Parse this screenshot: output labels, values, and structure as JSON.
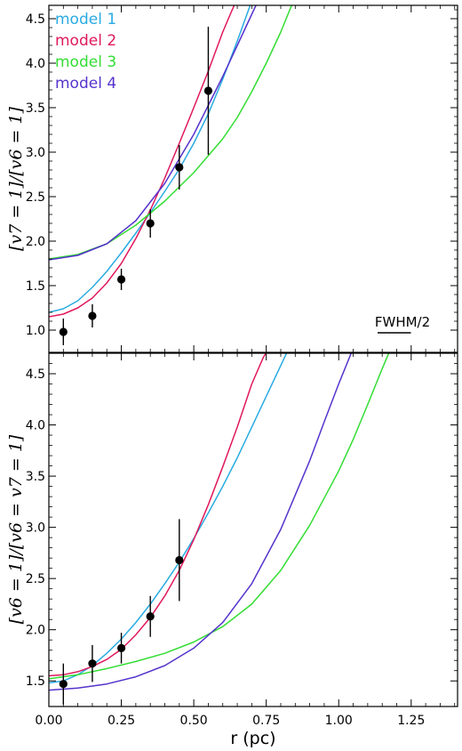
{
  "chart_data": [
    {
      "type": "scatter",
      "ylabel": "[v7 = 1]/[v6 = 1]",
      "ylim": [
        0.75,
        4.65
      ],
      "xlim": [
        0.0,
        1.41
      ],
      "yticks": [
        "1.0",
        "1.5",
        "2.0",
        "2.5",
        "3.0",
        "3.5",
        "4.0",
        "4.5"
      ],
      "legend": {
        "placement": "top-left",
        "entries": [
          "model 1",
          "model 2",
          "model 3",
          "model 4"
        ]
      },
      "annotation": "FWHM/2",
      "fwhm_half_pc": 0.115,
      "observed": {
        "x": [
          0.05,
          0.15,
          0.25,
          0.35,
          0.45,
          0.55
        ],
        "y": [
          0.98,
          1.16,
          1.57,
          2.2,
          2.83,
          3.69
        ],
        "err": [
          0.15,
          0.13,
          0.12,
          0.16,
          0.25,
          0.72
        ]
      },
      "series": [
        {
          "name": "model 1",
          "color": "#29abe2",
          "x": [
            0.0,
            0.05,
            0.1,
            0.15,
            0.2,
            0.25,
            0.3,
            0.35,
            0.4,
            0.45,
            0.5,
            0.55,
            0.6,
            0.65,
            0.7
          ],
          "y": [
            1.2,
            1.24,
            1.33,
            1.48,
            1.66,
            1.87,
            2.09,
            2.32,
            2.56,
            2.81,
            3.1,
            3.43,
            3.82,
            4.25,
            4.7
          ]
        },
        {
          "name": "model 2",
          "color": "#e0185c",
          "x": [
            0.0,
            0.05,
            0.1,
            0.15,
            0.2,
            0.25,
            0.3,
            0.35,
            0.4,
            0.45,
            0.5,
            0.55,
            0.6,
            0.63,
            0.66
          ],
          "y": [
            1.15,
            1.18,
            1.25,
            1.36,
            1.53,
            1.75,
            2.03,
            2.35,
            2.71,
            3.1,
            3.5,
            3.91,
            4.35,
            4.58,
            4.8
          ]
        },
        {
          "name": "model 3",
          "color": "#33dd33",
          "x": [
            0.0,
            0.1,
            0.2,
            0.3,
            0.4,
            0.5,
            0.6,
            0.65,
            0.7,
            0.75,
            0.8,
            0.85
          ],
          "y": [
            1.8,
            1.85,
            1.97,
            2.18,
            2.45,
            2.77,
            3.15,
            3.39,
            3.68,
            4.0,
            4.35,
            4.75
          ]
        },
        {
          "name": "model 4",
          "color": "#5533cc",
          "x": [
            0.0,
            0.1,
            0.2,
            0.3,
            0.4,
            0.5,
            0.6,
            0.65,
            0.7,
            0.75
          ],
          "y": [
            1.79,
            1.84,
            1.97,
            2.23,
            2.65,
            3.2,
            3.85,
            4.2,
            4.55,
            4.9
          ]
        }
      ]
    },
    {
      "type": "scatter",
      "xlabel": "r (pc)",
      "ylabel": "[v6 = 1]/[v6 = v7 = 1]",
      "ylim": [
        1.25,
        4.7
      ],
      "xlim": [
        0.0,
        1.41
      ],
      "xticks": [
        "0.00",
        "0.25",
        "0.50",
        "0.75",
        "1.00",
        "1.25"
      ],
      "yticks": [
        "1.5",
        "2.0",
        "2.5",
        "3.0",
        "3.5",
        "4.0",
        "4.5"
      ],
      "observed": {
        "x": [
          0.05,
          0.15,
          0.25,
          0.35,
          0.45
        ],
        "y": [
          1.47,
          1.67,
          1.82,
          2.13,
          2.68
        ],
        "err": [
          0.2,
          0.18,
          0.15,
          0.2,
          0.4
        ]
      },
      "series": [
        {
          "name": "model 1",
          "color": "#29abe2",
          "x": [
            0.0,
            0.05,
            0.1,
            0.15,
            0.2,
            0.25,
            0.3,
            0.35,
            0.4,
            0.45,
            0.5,
            0.55,
            0.6,
            0.65,
            0.7,
            0.75,
            0.8,
            0.82
          ],
          "y": [
            1.48,
            1.5,
            1.56,
            1.65,
            1.77,
            1.91,
            2.07,
            2.25,
            2.45,
            2.66,
            2.89,
            3.14,
            3.4,
            3.68,
            3.98,
            4.28,
            4.58,
            4.7
          ]
        },
        {
          "name": "model 2",
          "color": "#e0185c",
          "x": [
            0.0,
            0.05,
            0.1,
            0.15,
            0.2,
            0.25,
            0.3,
            0.35,
            0.4,
            0.45,
            0.5,
            0.55,
            0.6,
            0.65,
            0.7,
            0.74,
            0.76
          ],
          "y": [
            1.55,
            1.56,
            1.59,
            1.64,
            1.71,
            1.81,
            1.95,
            2.12,
            2.33,
            2.58,
            2.88,
            3.22,
            3.59,
            3.98,
            4.4,
            4.66,
            4.75
          ]
        },
        {
          "name": "model 3",
          "color": "#33dd33",
          "x": [
            0.0,
            0.1,
            0.2,
            0.3,
            0.4,
            0.5,
            0.6,
            0.7,
            0.8,
            0.9,
            1.0,
            1.05,
            1.1,
            1.15,
            1.18
          ],
          "y": [
            1.52,
            1.56,
            1.62,
            1.69,
            1.77,
            1.88,
            2.03,
            2.25,
            2.58,
            3.02,
            3.55,
            3.86,
            4.2,
            4.55,
            4.75
          ]
        },
        {
          "name": "model 4",
          "color": "#5533cc",
          "x": [
            0.0,
            0.1,
            0.2,
            0.3,
            0.4,
            0.5,
            0.6,
            0.7,
            0.8,
            0.9,
            0.95,
            1.0,
            1.05,
            1.08
          ],
          "y": [
            1.41,
            1.43,
            1.47,
            1.54,
            1.65,
            1.82,
            2.07,
            2.45,
            2.98,
            3.65,
            4.03,
            4.4,
            4.75,
            4.9
          ]
        }
      ]
    }
  ]
}
